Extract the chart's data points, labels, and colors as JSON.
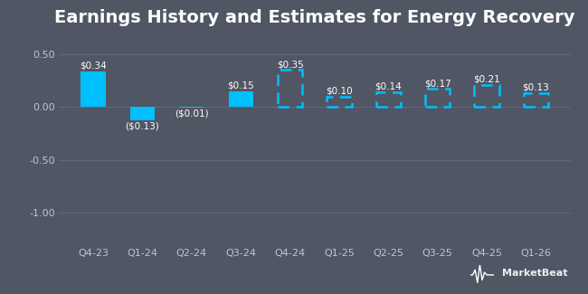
{
  "title": "Earnings History and Estimates for Energy Recovery",
  "categories": [
    "Q4-23",
    "Q1-24",
    "Q2-24",
    "Q3-24",
    "Q4-24",
    "Q1-25",
    "Q2-25",
    "Q3-25",
    "Q4-25",
    "Q1-26"
  ],
  "values": [
    0.34,
    -0.13,
    -0.01,
    0.15,
    0.35,
    0.1,
    0.14,
    0.17,
    0.21,
    0.13
  ],
  "labels": [
    "$0.34",
    "($0.13)",
    "($0.01)",
    "$0.15",
    "$0.35",
    "$0.10",
    "$0.14",
    "$0.17",
    "$0.21",
    "$0.13"
  ],
  "is_estimate": [
    false,
    false,
    false,
    false,
    true,
    true,
    true,
    true,
    true,
    true
  ],
  "bar_color": "#00bfff",
  "background_color": "#505664",
  "plot_bg_color": "#505664",
  "grid_color": "#636875",
  "text_color": "#ffffff",
  "tick_color": "#c0c4cc",
  "ylim": [
    -1.3,
    0.68
  ],
  "yticks": [
    -1.0,
    -0.5,
    0.0,
    0.5
  ],
  "title_fontsize": 14,
  "label_fontsize": 7.5,
  "tick_fontsize": 8,
  "watermark": "⚡MarketBeat"
}
